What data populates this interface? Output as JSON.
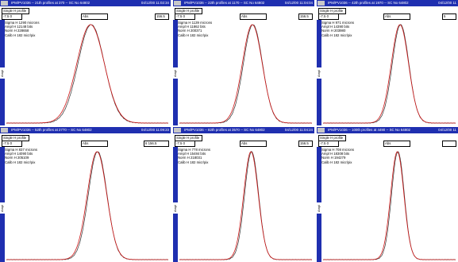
{
  "window": {
    "subhead": "Single H profile",
    "abs_label": "Abs",
    "axis_label": "Ampl"
  },
  "colors": {
    "fit": "#d01818",
    "measured": "#303030",
    "titlebar": "#1f2fb0"
  },
  "panels": [
    {
      "title": "IPM/PV1036 -- 21th profiles at 370 -- SC No 64802",
      "date": "04/12/00 11:02:34",
      "ctrl_left": "-7.5   0",
      "ctrl_right": "156.5",
      "sigma": "Sigma H  1290 microns",
      "ampl": "Ampl  H 12148 bits",
      "norm": "Norm  H 228658",
      "calib": "Calib H   182 micr/pix"
    },
    {
      "title": "IPM/PV1036 -- 22th profiles at 1170 -- SC No 64802",
      "date": "04/12/00 11:04:04",
      "ctrl_left": "-7.5   0",
      "ctrl_right": "156.5",
      "sigma": "Sigma H  1139 microns",
      "ampl": "Ampl  H 11862 bits",
      "norm": "Norm  H 200371",
      "calib": "Calib H   182 micr/pix"
    },
    {
      "title": "IPM/PV1036 -- 42th profiles at 1970 -- SC No 64802",
      "date": "04/12/00 11",
      "ctrl_left": "-7.5   0",
      "ctrl_right": "5",
      "sigma": "Sigma H   971 microns",
      "ampl": "Ampl  H 14390 bits",
      "norm": "Norm  H 203980",
      "calib": "Calib H   182 micr/pix"
    },
    {
      "title": "IPM/PV1036 -- 52th profiles at 2770 -- SC No 64802",
      "date": "04/12/00 11:09:23",
      "ctrl_left": "-7.5   0",
      "ctrl_right": "6    156.5",
      "sigma": "Sigma H   837 microns",
      "ampl": "Ampl  H 14090 bits",
      "norm": "Norm  H 205109",
      "calib": "Calib H   182 micr/pix"
    },
    {
      "title": "IPM/PV1036 -- 82th profiles at 3570 -- SC No 64802",
      "date": "04/12/00 11:04:24",
      "ctrl_left": "-7.5   0",
      "ctrl_right": "156.5",
      "sigma": "Sigma H   778 microns",
      "ampl": "Ampl  H 15484 bits",
      "norm": "Norm  H 218031",
      "calib": "Calib H   182 micr/pix"
    },
    {
      "title": "IPM/PV1036 -- 100th profiles at 4490 -- SC No 64802",
      "date": "04/12/00 11",
      "ctrl_left": "-7.5   0",
      "ctrl_right": "",
      "sigma": "Sigma H   708 microns",
      "ampl": "Ampl  H 18308 bits",
      "norm": "Norm  H 194279",
      "calib": "Calib H   182 micr/pix"
    }
  ]
}
